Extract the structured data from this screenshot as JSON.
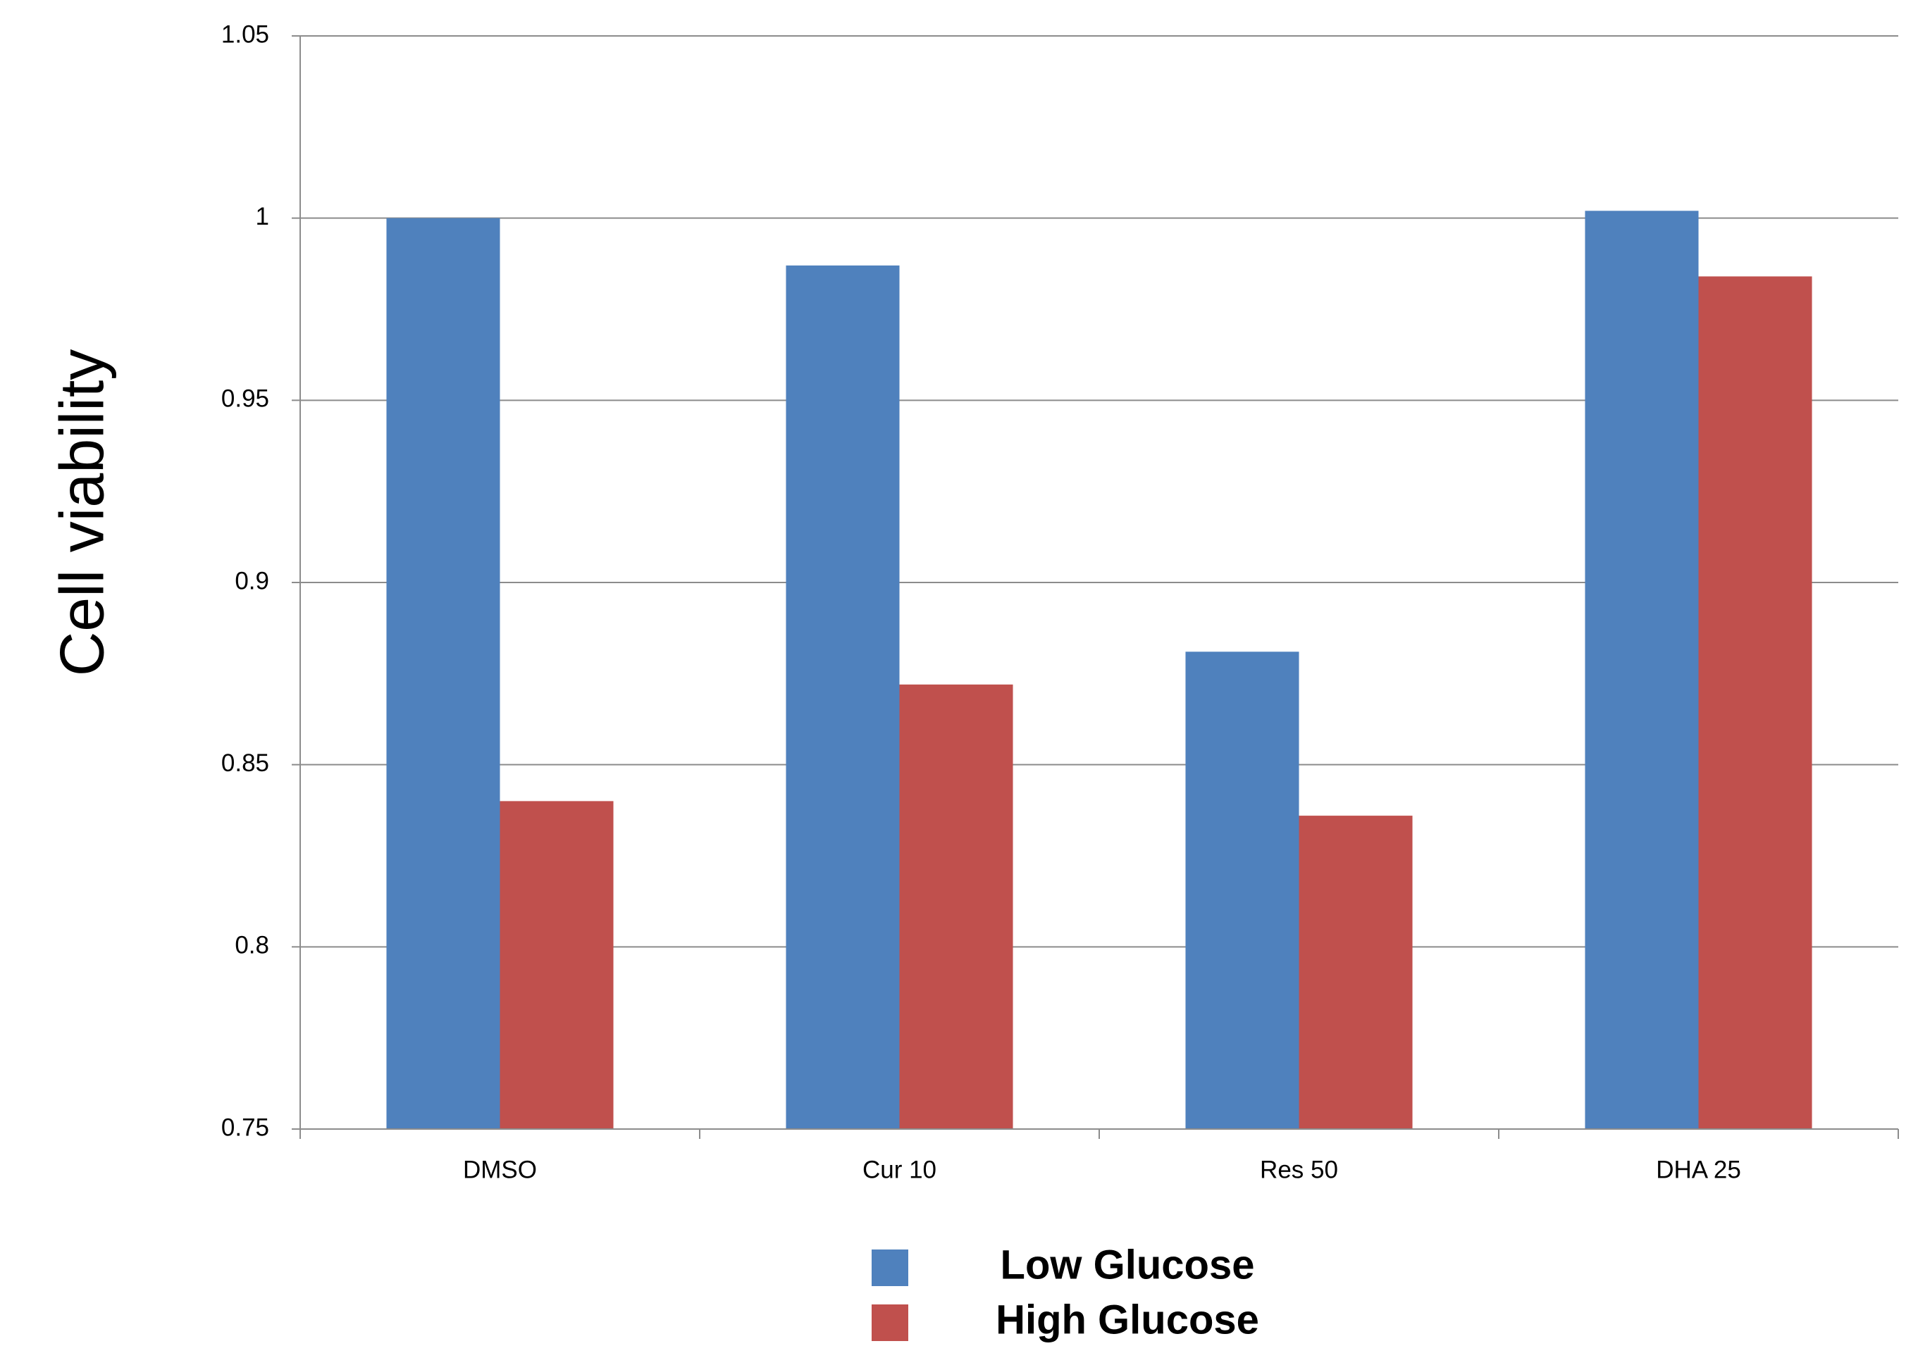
{
  "chart_data": {
    "type": "bar",
    "y_label": "Cell viability",
    "categories": [
      "DMSO",
      "Cur 10",
      "Res 50",
      "DHA 25"
    ],
    "series": [
      {
        "name": "Low Glucose",
        "color": "#4f81bd",
        "values": [
          1.0,
          0.987,
          0.881,
          1.002
        ]
      },
      {
        "name": "High Glucose",
        "color": "#c0504d",
        "values": [
          0.84,
          0.872,
          0.836,
          0.984
        ]
      }
    ],
    "ylim": [
      0.75,
      1.05
    ],
    "yticks": [
      0.75,
      0.8,
      0.85,
      0.9,
      0.95,
      1,
      1.05
    ],
    "grid": true,
    "legend": "bottom"
  }
}
